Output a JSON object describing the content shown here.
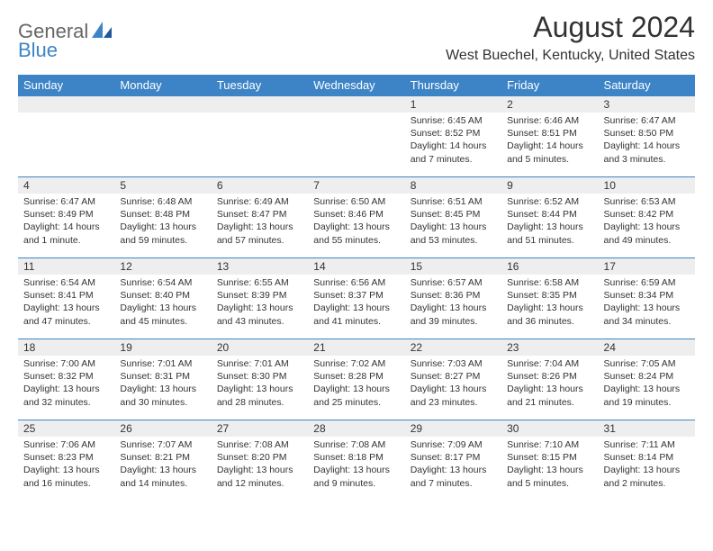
{
  "brand": {
    "part1": "General",
    "part2": "Blue"
  },
  "title": "August 2024",
  "location": "West Buechel, Kentucky, United States",
  "colors": {
    "header_bg": "#3d84c6",
    "header_fg": "#ffffff",
    "daynum_bg": "#eeeeee",
    "text": "#333333",
    "border": "#3d84c6"
  },
  "dayNames": [
    "Sunday",
    "Monday",
    "Tuesday",
    "Wednesday",
    "Thursday",
    "Friday",
    "Saturday"
  ],
  "weeks": [
    [
      {
        "empty": true
      },
      {
        "empty": true
      },
      {
        "empty": true
      },
      {
        "empty": true
      },
      {
        "num": "1",
        "sunrise": "6:45 AM",
        "sunset": "8:52 PM",
        "daylight": "14 hours and 7 minutes."
      },
      {
        "num": "2",
        "sunrise": "6:46 AM",
        "sunset": "8:51 PM",
        "daylight": "14 hours and 5 minutes."
      },
      {
        "num": "3",
        "sunrise": "6:47 AM",
        "sunset": "8:50 PM",
        "daylight": "14 hours and 3 minutes."
      }
    ],
    [
      {
        "num": "4",
        "sunrise": "6:47 AM",
        "sunset": "8:49 PM",
        "daylight": "14 hours and 1 minute."
      },
      {
        "num": "5",
        "sunrise": "6:48 AM",
        "sunset": "8:48 PM",
        "daylight": "13 hours and 59 minutes."
      },
      {
        "num": "6",
        "sunrise": "6:49 AM",
        "sunset": "8:47 PM",
        "daylight": "13 hours and 57 minutes."
      },
      {
        "num": "7",
        "sunrise": "6:50 AM",
        "sunset": "8:46 PM",
        "daylight": "13 hours and 55 minutes."
      },
      {
        "num": "8",
        "sunrise": "6:51 AM",
        "sunset": "8:45 PM",
        "daylight": "13 hours and 53 minutes."
      },
      {
        "num": "9",
        "sunrise": "6:52 AM",
        "sunset": "8:44 PM",
        "daylight": "13 hours and 51 minutes."
      },
      {
        "num": "10",
        "sunrise": "6:53 AM",
        "sunset": "8:42 PM",
        "daylight": "13 hours and 49 minutes."
      }
    ],
    [
      {
        "num": "11",
        "sunrise": "6:54 AM",
        "sunset": "8:41 PM",
        "daylight": "13 hours and 47 minutes."
      },
      {
        "num": "12",
        "sunrise": "6:54 AM",
        "sunset": "8:40 PM",
        "daylight": "13 hours and 45 minutes."
      },
      {
        "num": "13",
        "sunrise": "6:55 AM",
        "sunset": "8:39 PM",
        "daylight": "13 hours and 43 minutes."
      },
      {
        "num": "14",
        "sunrise": "6:56 AM",
        "sunset": "8:37 PM",
        "daylight": "13 hours and 41 minutes."
      },
      {
        "num": "15",
        "sunrise": "6:57 AM",
        "sunset": "8:36 PM",
        "daylight": "13 hours and 39 minutes."
      },
      {
        "num": "16",
        "sunrise": "6:58 AM",
        "sunset": "8:35 PM",
        "daylight": "13 hours and 36 minutes."
      },
      {
        "num": "17",
        "sunrise": "6:59 AM",
        "sunset": "8:34 PM",
        "daylight": "13 hours and 34 minutes."
      }
    ],
    [
      {
        "num": "18",
        "sunrise": "7:00 AM",
        "sunset": "8:32 PM",
        "daylight": "13 hours and 32 minutes."
      },
      {
        "num": "19",
        "sunrise": "7:01 AM",
        "sunset": "8:31 PM",
        "daylight": "13 hours and 30 minutes."
      },
      {
        "num": "20",
        "sunrise": "7:01 AM",
        "sunset": "8:30 PM",
        "daylight": "13 hours and 28 minutes."
      },
      {
        "num": "21",
        "sunrise": "7:02 AM",
        "sunset": "8:28 PM",
        "daylight": "13 hours and 25 minutes."
      },
      {
        "num": "22",
        "sunrise": "7:03 AM",
        "sunset": "8:27 PM",
        "daylight": "13 hours and 23 minutes."
      },
      {
        "num": "23",
        "sunrise": "7:04 AM",
        "sunset": "8:26 PM",
        "daylight": "13 hours and 21 minutes."
      },
      {
        "num": "24",
        "sunrise": "7:05 AM",
        "sunset": "8:24 PM",
        "daylight": "13 hours and 19 minutes."
      }
    ],
    [
      {
        "num": "25",
        "sunrise": "7:06 AM",
        "sunset": "8:23 PM",
        "daylight": "13 hours and 16 minutes."
      },
      {
        "num": "26",
        "sunrise": "7:07 AM",
        "sunset": "8:21 PM",
        "daylight": "13 hours and 14 minutes."
      },
      {
        "num": "27",
        "sunrise": "7:08 AM",
        "sunset": "8:20 PM",
        "daylight": "13 hours and 12 minutes."
      },
      {
        "num": "28",
        "sunrise": "7:08 AM",
        "sunset": "8:18 PM",
        "daylight": "13 hours and 9 minutes."
      },
      {
        "num": "29",
        "sunrise": "7:09 AM",
        "sunset": "8:17 PM",
        "daylight": "13 hours and 7 minutes."
      },
      {
        "num": "30",
        "sunrise": "7:10 AM",
        "sunset": "8:15 PM",
        "daylight": "13 hours and 5 minutes."
      },
      {
        "num": "31",
        "sunrise": "7:11 AM",
        "sunset": "8:14 PM",
        "daylight": "13 hours and 2 minutes."
      }
    ]
  ],
  "labels": {
    "sunrise": "Sunrise:",
    "sunset": "Sunset:",
    "daylight": "Daylight:"
  }
}
